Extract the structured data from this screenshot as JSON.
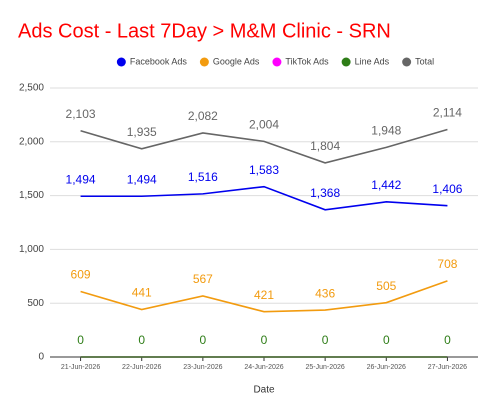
{
  "chart_data": {
    "type": "line",
    "title": "Ads Cost - Last 7Day > M&M Clinic - SRN",
    "x_label": "Date",
    "categories": [
      "21-Jun-2026",
      "22-Jun-2026",
      "23-Jun-2026",
      "24-Jun-2026",
      "25-Jun-2026",
      "26-Jun-2026",
      "27-Jun-2026"
    ],
    "series": [
      {
        "name": "Facebook Ads",
        "color": "#0000ee",
        "data_labels": true,
        "values": [
          1494,
          1494,
          1516,
          1583,
          1368,
          1442,
          1406
        ],
        "value_labels": [
          "1,494",
          "1,494",
          "1,516",
          "1,583",
          "1,368",
          "1,442",
          "1,406"
        ]
      },
      {
        "name": "Google Ads",
        "color": "#f29b0f",
        "data_labels": true,
        "values": [
          609,
          441,
          567,
          421,
          436,
          505,
          708
        ]
      },
      {
        "name": "TikTok Ads",
        "color": "#ff00ff",
        "data_labels": false,
        "values": [
          0,
          0,
          0,
          0,
          0,
          0,
          0
        ]
      },
      {
        "name": "Line Ads",
        "color": "#2e7d17",
        "data_labels": true,
        "values": [
          0,
          0,
          0,
          0,
          0,
          0,
          0
        ]
      },
      {
        "name": "Total",
        "color": "#666666",
        "data_labels": true,
        "values": [
          2103,
          1935,
          2082,
          2004,
          1804,
          1948,
          2114
        ],
        "value_labels": [
          "2,103",
          "1,935",
          "2,082",
          "2,004",
          "1,804",
          "1,948",
          "2,114"
        ]
      }
    ],
    "ylim": [
      0,
      2500
    ],
    "yticks": [
      0,
      500,
      {
        "value": 1000,
        "label": "1,000"
      },
      {
        "value": 1500,
        "label": "1,500"
      },
      {
        "value": 2000,
        "label": "2,000"
      },
      {
        "value": 2500,
        "label": "2,500"
      }
    ],
    "grid": true,
    "legend": "top"
  }
}
